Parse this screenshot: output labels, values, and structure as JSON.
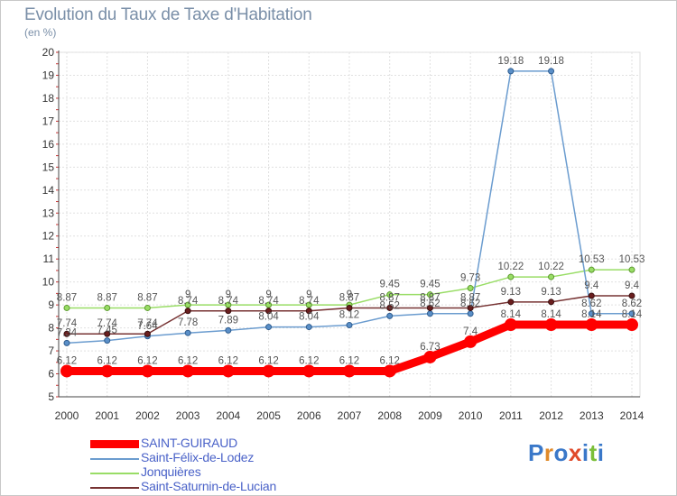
{
  "header": {
    "title": "Evolution du Taux de Taxe d'Habitation",
    "subtitle": "(en %)"
  },
  "logo": {
    "letters": [
      {
        "ch": "P",
        "color": "#3a78c9"
      },
      {
        "ch": "r",
        "color": "#e08a2a"
      },
      {
        "ch": "o",
        "color": "#3a78c9"
      },
      {
        "ch": "x",
        "color": "#e04a2a"
      },
      {
        "ch": "i",
        "color": "#3a78c9"
      },
      {
        "ch": "t",
        "color": "#7bbf3a"
      },
      {
        "ch": "i",
        "color": "#3a78c9"
      }
    ]
  },
  "chart_data": {
    "type": "line",
    "title": "Evolution du Taux de Taxe d'Habitation",
    "ylabel": "(en %)",
    "xlabel": "",
    "x": [
      "2000",
      "2001",
      "2002",
      "2003",
      "2004",
      "2005",
      "2006",
      "2007",
      "2008",
      "2009",
      "2010",
      "2011",
      "2012",
      "2013",
      "2014"
    ],
    "ylim": [
      5,
      20
    ],
    "yticks": [
      "5",
      "6",
      "7",
      "8",
      "9",
      "10",
      "11",
      "12",
      "13",
      "14",
      "15",
      "16",
      "17",
      "18",
      "19",
      "20"
    ],
    "grid": true,
    "legend_position": "bottom-left",
    "series": [
      {
        "name": "SAINT-GUIRAUD",
        "color": "#ff0000",
        "values": [
          6.12,
          6.12,
          6.12,
          6.12,
          6.12,
          6.12,
          6.12,
          6.12,
          6.12,
          6.73,
          7.4,
          8.14,
          8.14,
          8.14,
          8.14
        ],
        "labels": [
          "6.12",
          "6.12",
          "6.12",
          "6.12",
          "6.12",
          "6.12",
          "6.12",
          "6.12",
          "6.12",
          "6.73",
          "7.4",
          "8.14",
          "8.14",
          "8.14",
          "8.14"
        ]
      },
      {
        "name": "Saint-Félix-de-Lodez",
        "color": "#6b9ccf",
        "values": [
          7.34,
          7.45,
          7.64,
          7.78,
          7.89,
          8.04,
          8.04,
          8.12,
          8.52,
          8.62,
          8.62,
          19.18,
          19.18,
          8.62,
          8.62
        ],
        "labels": [
          "7.34",
          "7.45",
          "7.64",
          "7.78",
          "7.89",
          "8.04",
          "8.04",
          "8.12",
          "8.52",
          "8.62",
          "8.62",
          "19.18",
          "19.18",
          "8.62",
          "8.62"
        ]
      },
      {
        "name": "Jonquières",
        "color": "#99dd66",
        "values": [
          8.87,
          8.87,
          8.87,
          9,
          9,
          9,
          9,
          9,
          9.45,
          9.45,
          9.73,
          10.22,
          10.22,
          10.53,
          10.53
        ],
        "labels": [
          "8.87",
          "8.87",
          "8.87",
          "9",
          "9",
          "9",
          "9",
          "9",
          "9.45",
          "9.45",
          "9.73",
          "10.22",
          "10.22",
          "10.53",
          "10.53"
        ]
      },
      {
        "name": "Saint-Saturnin-de-Lucian",
        "color": "#773333",
        "values": [
          7.74,
          7.74,
          7.74,
          8.74,
          8.74,
          8.74,
          8.74,
          8.87,
          8.87,
          8.87,
          8.87,
          9.13,
          9.13,
          9.4,
          9.4
        ],
        "labels": [
          "7.74",
          "7.74",
          "7.74",
          "8.74",
          "8.74",
          "8.74",
          "8.74",
          "8.87",
          "8.87",
          "8.87",
          "8.87",
          "9.13",
          "9.13",
          "9.4",
          "9.4"
        ]
      }
    ]
  }
}
